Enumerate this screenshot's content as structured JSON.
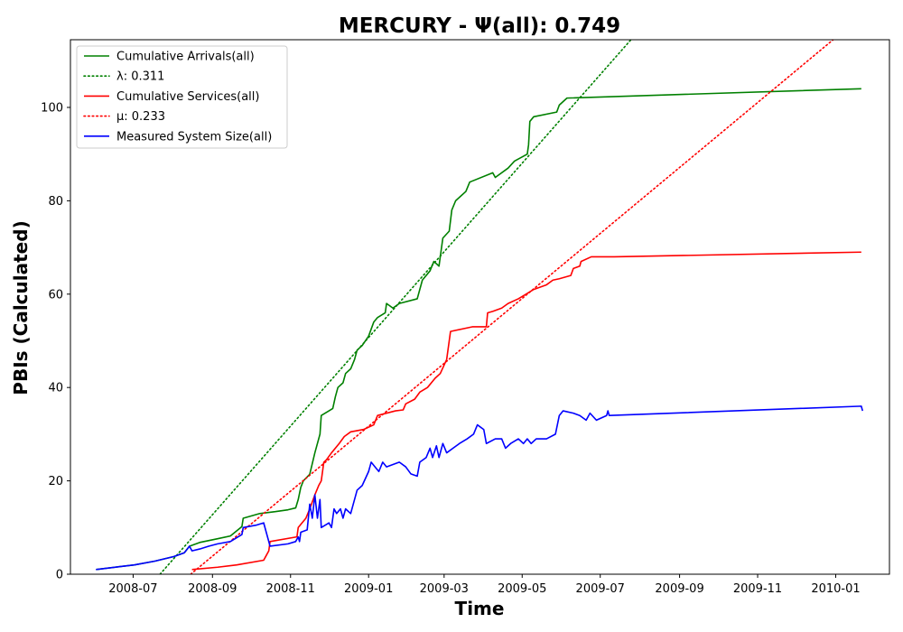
{
  "chart_data": {
    "type": "line",
    "title": "MERCURY -  Ψ(all): 0.749",
    "xlabel": "Time",
    "ylabel": "PBIs (Calculated)",
    "x_ticks": [
      "2008-07",
      "2008-09",
      "2008-11",
      "2009-01",
      "2009-03",
      "2009-05",
      "2009-07",
      "2009-09",
      "2009-11",
      "2010-01"
    ],
    "y_ticks": [
      0,
      20,
      40,
      60,
      80,
      100
    ],
    "xlim": [
      "2008-05-13",
      "2010-02-12"
    ],
    "ylim": [
      0,
      114.5
    ],
    "grid": false,
    "legend_position": "top-left",
    "series": [
      {
        "name": "Cumulative Arrivals(all)",
        "color": "#008000",
        "style": "solid",
        "points": [
          [
            "2008-06-02",
            1
          ],
          [
            "2008-06-20",
            1.6
          ],
          [
            "2008-07-02",
            2
          ],
          [
            "2008-07-18",
            2.8
          ],
          [
            "2008-08-02",
            3.8
          ],
          [
            "2008-08-10",
            4.6
          ],
          [
            "2008-08-14",
            6
          ],
          [
            "2008-08-22",
            6.8
          ],
          [
            "2008-09-05",
            7.6
          ],
          [
            "2008-09-15",
            8.2
          ],
          [
            "2008-09-24",
            10.2
          ],
          [
            "2008-09-25",
            12
          ],
          [
            "2008-10-08",
            13
          ],
          [
            "2008-10-20",
            13.4
          ],
          [
            "2008-10-30",
            13.8
          ],
          [
            "2008-11-05",
            14.2
          ],
          [
            "2008-11-07",
            16
          ],
          [
            "2008-11-09",
            18.6
          ],
          [
            "2008-11-11",
            20
          ],
          [
            "2008-11-16",
            21.4
          ],
          [
            "2008-11-20",
            26
          ],
          [
            "2008-11-24",
            30
          ],
          [
            "2008-11-25",
            34
          ],
          [
            "2008-12-01",
            35
          ],
          [
            "2008-12-04",
            35.5
          ],
          [
            "2008-12-06",
            38
          ],
          [
            "2008-12-08",
            40
          ],
          [
            "2008-12-12",
            41
          ],
          [
            "2008-12-14",
            43
          ],
          [
            "2008-12-18",
            44
          ],
          [
            "2008-12-21",
            46
          ],
          [
            "2008-12-23",
            48
          ],
          [
            "2008-12-27",
            49
          ],
          [
            "2009-01-01",
            51
          ],
          [
            "2009-01-05",
            54
          ],
          [
            "2009-01-08",
            55
          ],
          [
            "2009-01-14",
            56
          ],
          [
            "2009-01-15",
            58
          ],
          [
            "2009-01-20",
            57
          ],
          [
            "2009-01-25",
            58
          ],
          [
            "2009-02-08",
            59
          ],
          [
            "2009-02-12",
            63
          ],
          [
            "2009-02-18",
            65
          ],
          [
            "2009-02-21",
            67
          ],
          [
            "2009-02-25",
            66
          ],
          [
            "2009-02-28",
            72
          ],
          [
            "2009-03-05",
            73.5
          ],
          [
            "2009-03-07",
            78
          ],
          [
            "2009-03-10",
            80
          ],
          [
            "2009-03-18",
            82
          ],
          [
            "2009-03-21",
            84
          ],
          [
            "2009-04-08",
            86
          ],
          [
            "2009-04-10",
            85
          ],
          [
            "2009-04-20",
            87
          ],
          [
            "2009-04-25",
            88.5
          ],
          [
            "2009-05-05",
            90
          ],
          [
            "2009-05-06",
            92
          ],
          [
            "2009-05-07",
            97
          ],
          [
            "2009-05-10",
            98
          ],
          [
            "2009-05-28",
            99
          ],
          [
            "2009-05-30",
            100.5
          ],
          [
            "2009-06-05",
            102
          ],
          [
            "2010-01-21",
            104
          ]
        ]
      },
      {
        "name": "λ: 0.311",
        "color": "#008000",
        "style": "dotted",
        "points": [
          [
            "2008-07-22",
            0
          ],
          [
            "2009-07-25",
            114.5
          ]
        ]
      },
      {
        "name": "Cumulative Services(all)",
        "color": "#ff0000",
        "style": "solid",
        "points": [
          [
            "2008-08-16",
            1
          ],
          [
            "2008-09-05",
            1.5
          ],
          [
            "2008-09-20",
            2
          ],
          [
            "2008-10-11",
            3
          ],
          [
            "2008-10-13",
            4
          ],
          [
            "2008-10-15",
            5
          ],
          [
            "2008-10-16",
            7
          ],
          [
            "2008-11-06",
            8
          ],
          [
            "2008-11-07",
            10
          ],
          [
            "2008-11-10",
            11
          ],
          [
            "2008-11-13",
            12
          ],
          [
            "2008-11-16",
            14
          ],
          [
            "2008-11-20",
            17
          ],
          [
            "2008-11-23",
            19
          ],
          [
            "2008-11-25",
            20
          ],
          [
            "2008-11-27",
            24
          ],
          [
            "2008-11-29",
            24.5
          ],
          [
            "2008-12-03",
            26
          ],
          [
            "2008-12-09",
            28
          ],
          [
            "2008-12-13",
            29.5
          ],
          [
            "2008-12-18",
            30.5
          ],
          [
            "2008-12-28",
            31
          ],
          [
            "2009-01-05",
            32
          ],
          [
            "2009-01-08",
            34
          ],
          [
            "2009-01-22",
            35
          ],
          [
            "2009-01-28",
            35.2
          ],
          [
            "2009-01-30",
            36.5
          ],
          [
            "2009-02-06",
            37.5
          ],
          [
            "2009-02-10",
            39
          ],
          [
            "2009-02-16",
            40
          ],
          [
            "2009-02-22",
            42
          ],
          [
            "2009-02-26",
            43
          ],
          [
            "2009-03-03",
            46
          ],
          [
            "2009-03-06",
            52
          ],
          [
            "2009-03-23",
            53
          ],
          [
            "2009-04-03",
            53
          ],
          [
            "2009-04-04",
            56
          ],
          [
            "2009-04-08",
            56.3
          ],
          [
            "2009-04-15",
            57
          ],
          [
            "2009-04-20",
            58
          ],
          [
            "2009-04-28",
            59
          ],
          [
            "2009-05-04",
            60
          ],
          [
            "2009-05-10",
            61
          ],
          [
            "2009-05-20",
            62
          ],
          [
            "2009-05-25",
            63
          ],
          [
            "2009-05-30",
            63.3
          ],
          [
            "2009-06-08",
            64
          ],
          [
            "2009-06-10",
            65.5
          ],
          [
            "2009-06-15",
            66
          ],
          [
            "2009-06-16",
            67
          ],
          [
            "2009-06-24",
            68
          ],
          [
            "2009-07-12",
            68
          ],
          [
            "2010-01-21",
            69
          ]
        ]
      },
      {
        "name": "μ: 0.233",
        "color": "#ff0000",
        "style": "dotted",
        "points": [
          [
            "2008-08-15",
            0
          ],
          [
            "2009-12-30",
            114.5
          ]
        ]
      },
      {
        "name": "Measured System Size(all)",
        "color": "#0000ff",
        "style": "solid",
        "points": [
          [
            "2008-06-02",
            1
          ],
          [
            "2008-06-20",
            1.6
          ],
          [
            "2008-07-02",
            2
          ],
          [
            "2008-07-18",
            2.8
          ],
          [
            "2008-08-02",
            3.8
          ],
          [
            "2008-08-10",
            4.6
          ],
          [
            "2008-08-14",
            6
          ],
          [
            "2008-08-16",
            5
          ],
          [
            "2008-08-22",
            5.4
          ],
          [
            "2008-08-29",
            6
          ],
          [
            "2008-09-05",
            6.5
          ],
          [
            "2008-09-15",
            7
          ],
          [
            "2008-09-24",
            8.5
          ],
          [
            "2008-09-25",
            10
          ],
          [
            "2008-10-05",
            10.5
          ],
          [
            "2008-10-11",
            11
          ],
          [
            "2008-10-14",
            8
          ],
          [
            "2008-10-16",
            6
          ],
          [
            "2008-10-30",
            6.5
          ],
          [
            "2008-11-05",
            7
          ],
          [
            "2008-11-07",
            8
          ],
          [
            "2008-11-08",
            7
          ],
          [
            "2008-11-09",
            9
          ],
          [
            "2008-11-14",
            9.5
          ],
          [
            "2008-11-16",
            15
          ],
          [
            "2008-11-18",
            12
          ],
          [
            "2008-11-20",
            17
          ],
          [
            "2008-11-22",
            12
          ],
          [
            "2008-11-24",
            16
          ],
          [
            "2008-11-25",
            10
          ],
          [
            "2008-12-01",
            11
          ],
          [
            "2008-12-03",
            10
          ],
          [
            "2008-12-05",
            14
          ],
          [
            "2008-12-07",
            13
          ],
          [
            "2008-12-10",
            14
          ],
          [
            "2008-12-12",
            12
          ],
          [
            "2008-12-14",
            14
          ],
          [
            "2008-12-18",
            13
          ],
          [
            "2008-12-20",
            15
          ],
          [
            "2008-12-23",
            18
          ],
          [
            "2008-12-27",
            19
          ],
          [
            "2009-01-01",
            22
          ],
          [
            "2009-01-03",
            24
          ],
          [
            "2009-01-06",
            23
          ],
          [
            "2009-01-09",
            22
          ],
          [
            "2009-01-12",
            24
          ],
          [
            "2009-01-15",
            23
          ],
          [
            "2009-01-20",
            23.5
          ],
          [
            "2009-01-25",
            24
          ],
          [
            "2009-01-30",
            23
          ],
          [
            "2009-02-03",
            21.5
          ],
          [
            "2009-02-08",
            21
          ],
          [
            "2009-02-10",
            24
          ],
          [
            "2009-02-15",
            25
          ],
          [
            "2009-02-18",
            27
          ],
          [
            "2009-02-20",
            25
          ],
          [
            "2009-02-23",
            27.5
          ],
          [
            "2009-02-25",
            25
          ],
          [
            "2009-02-28",
            28
          ],
          [
            "2009-03-03",
            26
          ],
          [
            "2009-03-08",
            27
          ],
          [
            "2009-03-13",
            28
          ],
          [
            "2009-03-19",
            29
          ],
          [
            "2009-03-24",
            30
          ],
          [
            "2009-03-27",
            32
          ],
          [
            "2009-04-01",
            31
          ],
          [
            "2009-04-03",
            28
          ],
          [
            "2009-04-10",
            29
          ],
          [
            "2009-04-15",
            29
          ],
          [
            "2009-04-18",
            27
          ],
          [
            "2009-04-22",
            28
          ],
          [
            "2009-04-28",
            29
          ],
          [
            "2009-05-02",
            28
          ],
          [
            "2009-05-05",
            29
          ],
          [
            "2009-05-08",
            28
          ],
          [
            "2009-05-12",
            29
          ],
          [
            "2009-05-20",
            29
          ],
          [
            "2009-05-27",
            30
          ],
          [
            "2009-05-30",
            34
          ],
          [
            "2009-06-02",
            35
          ],
          [
            "2009-06-10",
            34.5
          ],
          [
            "2009-06-15",
            34
          ],
          [
            "2009-06-20",
            33
          ],
          [
            "2009-06-23",
            34.5
          ],
          [
            "2009-06-28",
            33
          ],
          [
            "2009-07-06",
            34
          ],
          [
            "2009-07-07",
            35
          ],
          [
            "2009-07-08",
            34
          ],
          [
            "2010-01-21",
            36
          ],
          [
            "2010-01-22",
            35
          ]
        ]
      }
    ]
  }
}
